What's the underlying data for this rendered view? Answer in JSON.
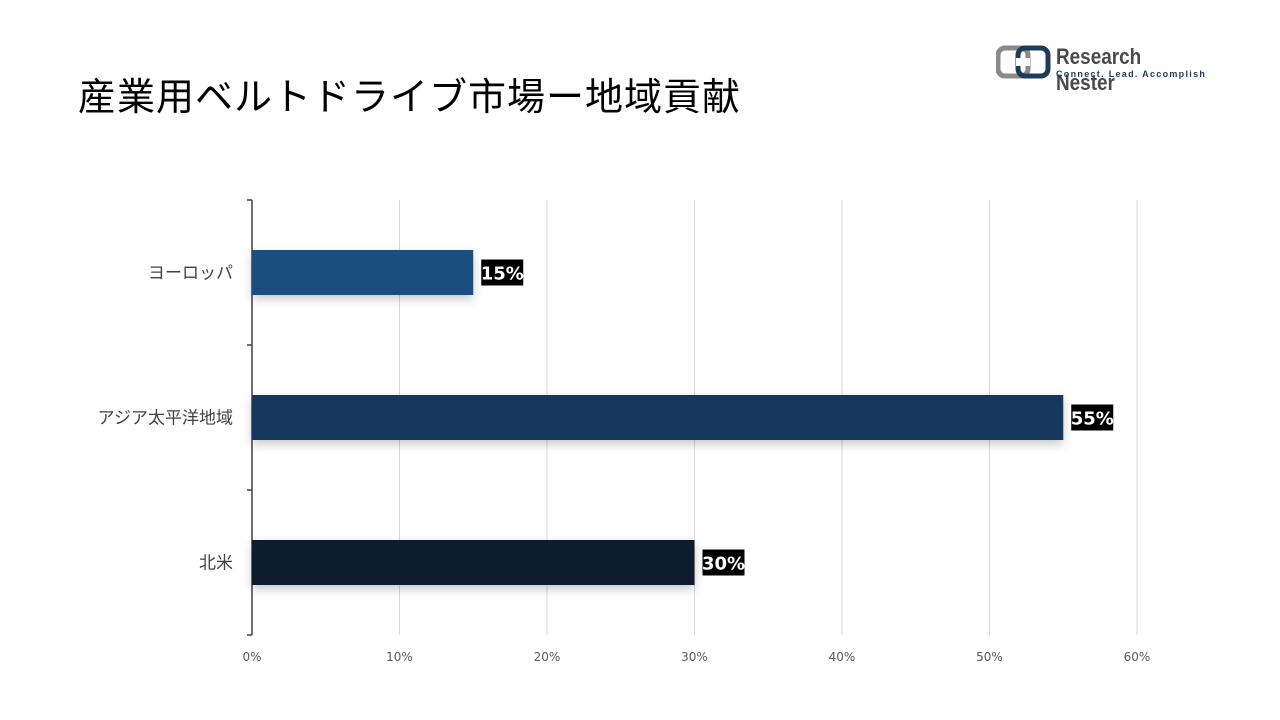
{
  "title": "産業用ベルトドライブ市場ー地域貢献",
  "logo": {
    "name": "Research Nester",
    "tagline": "Connect. Lead. Accomplish",
    "colors": {
      "mark": "#8a8a8a",
      "mark_accent": "#1f3b5a",
      "text": "#4a4a4a"
    }
  },
  "chart_data": {
    "type": "bar",
    "orientation": "horizontal",
    "categories": [
      "ヨーロッパ",
      "アジア太平洋地域",
      "北米"
    ],
    "values": [
      15,
      55,
      30
    ],
    "data_labels": [
      "15%",
      "55%",
      "30%"
    ],
    "bar_colors": [
      "#1f4e7f",
      "#17375e",
      "#0f1e2e"
    ],
    "xlim": [
      0,
      60
    ],
    "xticks": [
      "0%",
      "10%",
      "20%",
      "30%",
      "40%",
      "50%",
      "60%"
    ],
    "grid": true,
    "legend": "none",
    "title": "",
    "xlabel": "",
    "ylabel": ""
  }
}
